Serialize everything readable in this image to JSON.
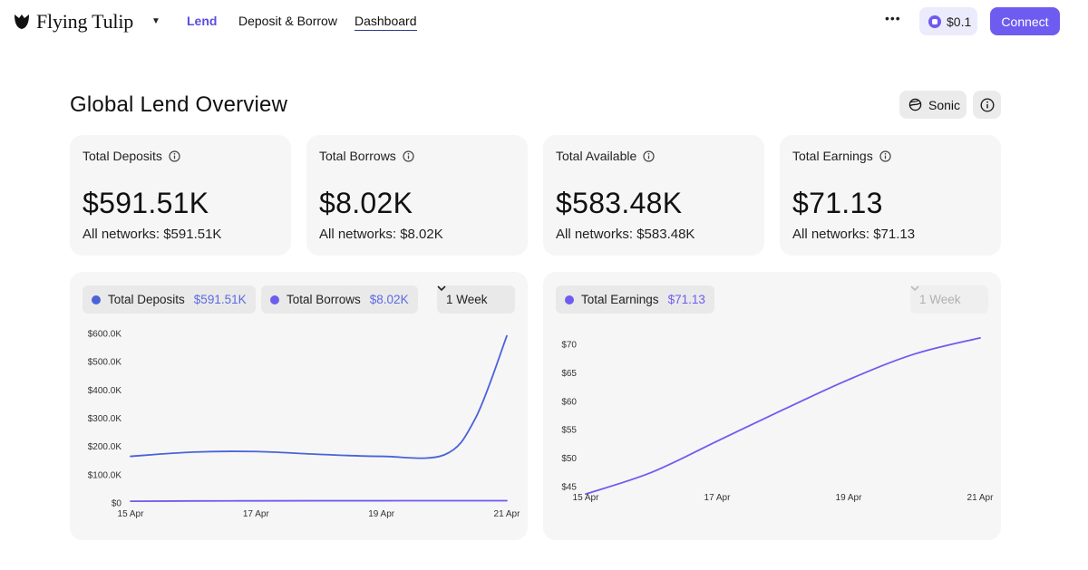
{
  "nav": {
    "brand": "Flying Tulip",
    "links": [
      "Lend",
      "Deposit & Borrow",
      "Dashboard"
    ],
    "more_icon": "ellipsis-icon",
    "balance": "$0.1",
    "connect_label": "Connect"
  },
  "page": {
    "title": "Global Lend Overview",
    "network": "Sonic"
  },
  "stats": [
    {
      "label": "Total Deposits",
      "value": "$591.51K",
      "sub": "All networks: $591.51K"
    },
    {
      "label": "Total Borrows",
      "value": "$8.02K",
      "sub": "All networks: $8.02K"
    },
    {
      "label": "Total Available",
      "value": "$583.48K",
      "sub": "All networks: $583.48K"
    },
    {
      "label": "Total Earnings",
      "value": "$71.13",
      "sub": "All networks: $71.13"
    }
  ],
  "colors": {
    "accent": "#6e5cf0",
    "deposits_line": "#4a63d8",
    "borrows_line": "#6e5cf0",
    "earnings_line": "#6e5cf0",
    "value_text": "#5b6ae0"
  },
  "charts": {
    "left": {
      "pills": [
        {
          "label": "Total Deposits",
          "value": "$591.51K",
          "color": "#4a63d8"
        },
        {
          "label": "Total Borrows",
          "value": "$8.02K",
          "color": "#6e5cf0"
        }
      ],
      "range": "1 Week"
    },
    "right": {
      "pills": [
        {
          "label": "Total Earnings",
          "value": "$71.13",
          "color": "#6e5cf0"
        }
      ],
      "range": "1 Week"
    }
  },
  "chart_data": [
    {
      "type": "line",
      "x": [
        "15 Apr",
        "16 Apr",
        "17 Apr",
        "18 Apr",
        "19 Apr",
        "20 Apr",
        "20.5 Apr",
        "21 Apr"
      ],
      "xticks": [
        "15 Apr",
        "17 Apr",
        "19 Apr",
        "21 Apr"
      ],
      "yticks": [
        "$0",
        "$100.0K",
        "$200.0K",
        "$300.0K",
        "$400.0K",
        "$500.0K",
        "$600.0K"
      ],
      "ylim": [
        0,
        600000
      ],
      "series": [
        {
          "name": "Total Deposits",
          "values": [
            165000,
            180000,
            182000,
            172000,
            165000,
            170000,
            300000,
            591510
          ]
        },
        {
          "name": "Total Borrows",
          "values": [
            6000,
            7000,
            7500,
            7800,
            7900,
            8000,
            8010,
            8020
          ]
        }
      ]
    },
    {
      "type": "line",
      "x": [
        "15 Apr",
        "16 Apr",
        "17 Apr",
        "18 Apr",
        "19 Apr",
        "20 Apr",
        "21 Apr"
      ],
      "xticks": [
        "15 Apr",
        "17 Apr",
        "19 Apr",
        "21 Apr"
      ],
      "yticks": [
        "$45",
        "$50",
        "$55",
        "$60",
        "$65",
        "$70"
      ],
      "ylim": [
        45,
        70
      ],
      "series": [
        {
          "name": "Total Earnings",
          "values": [
            43.7,
            47.5,
            53.0,
            58.5,
            63.8,
            68.3,
            71.13
          ]
        }
      ]
    }
  ]
}
